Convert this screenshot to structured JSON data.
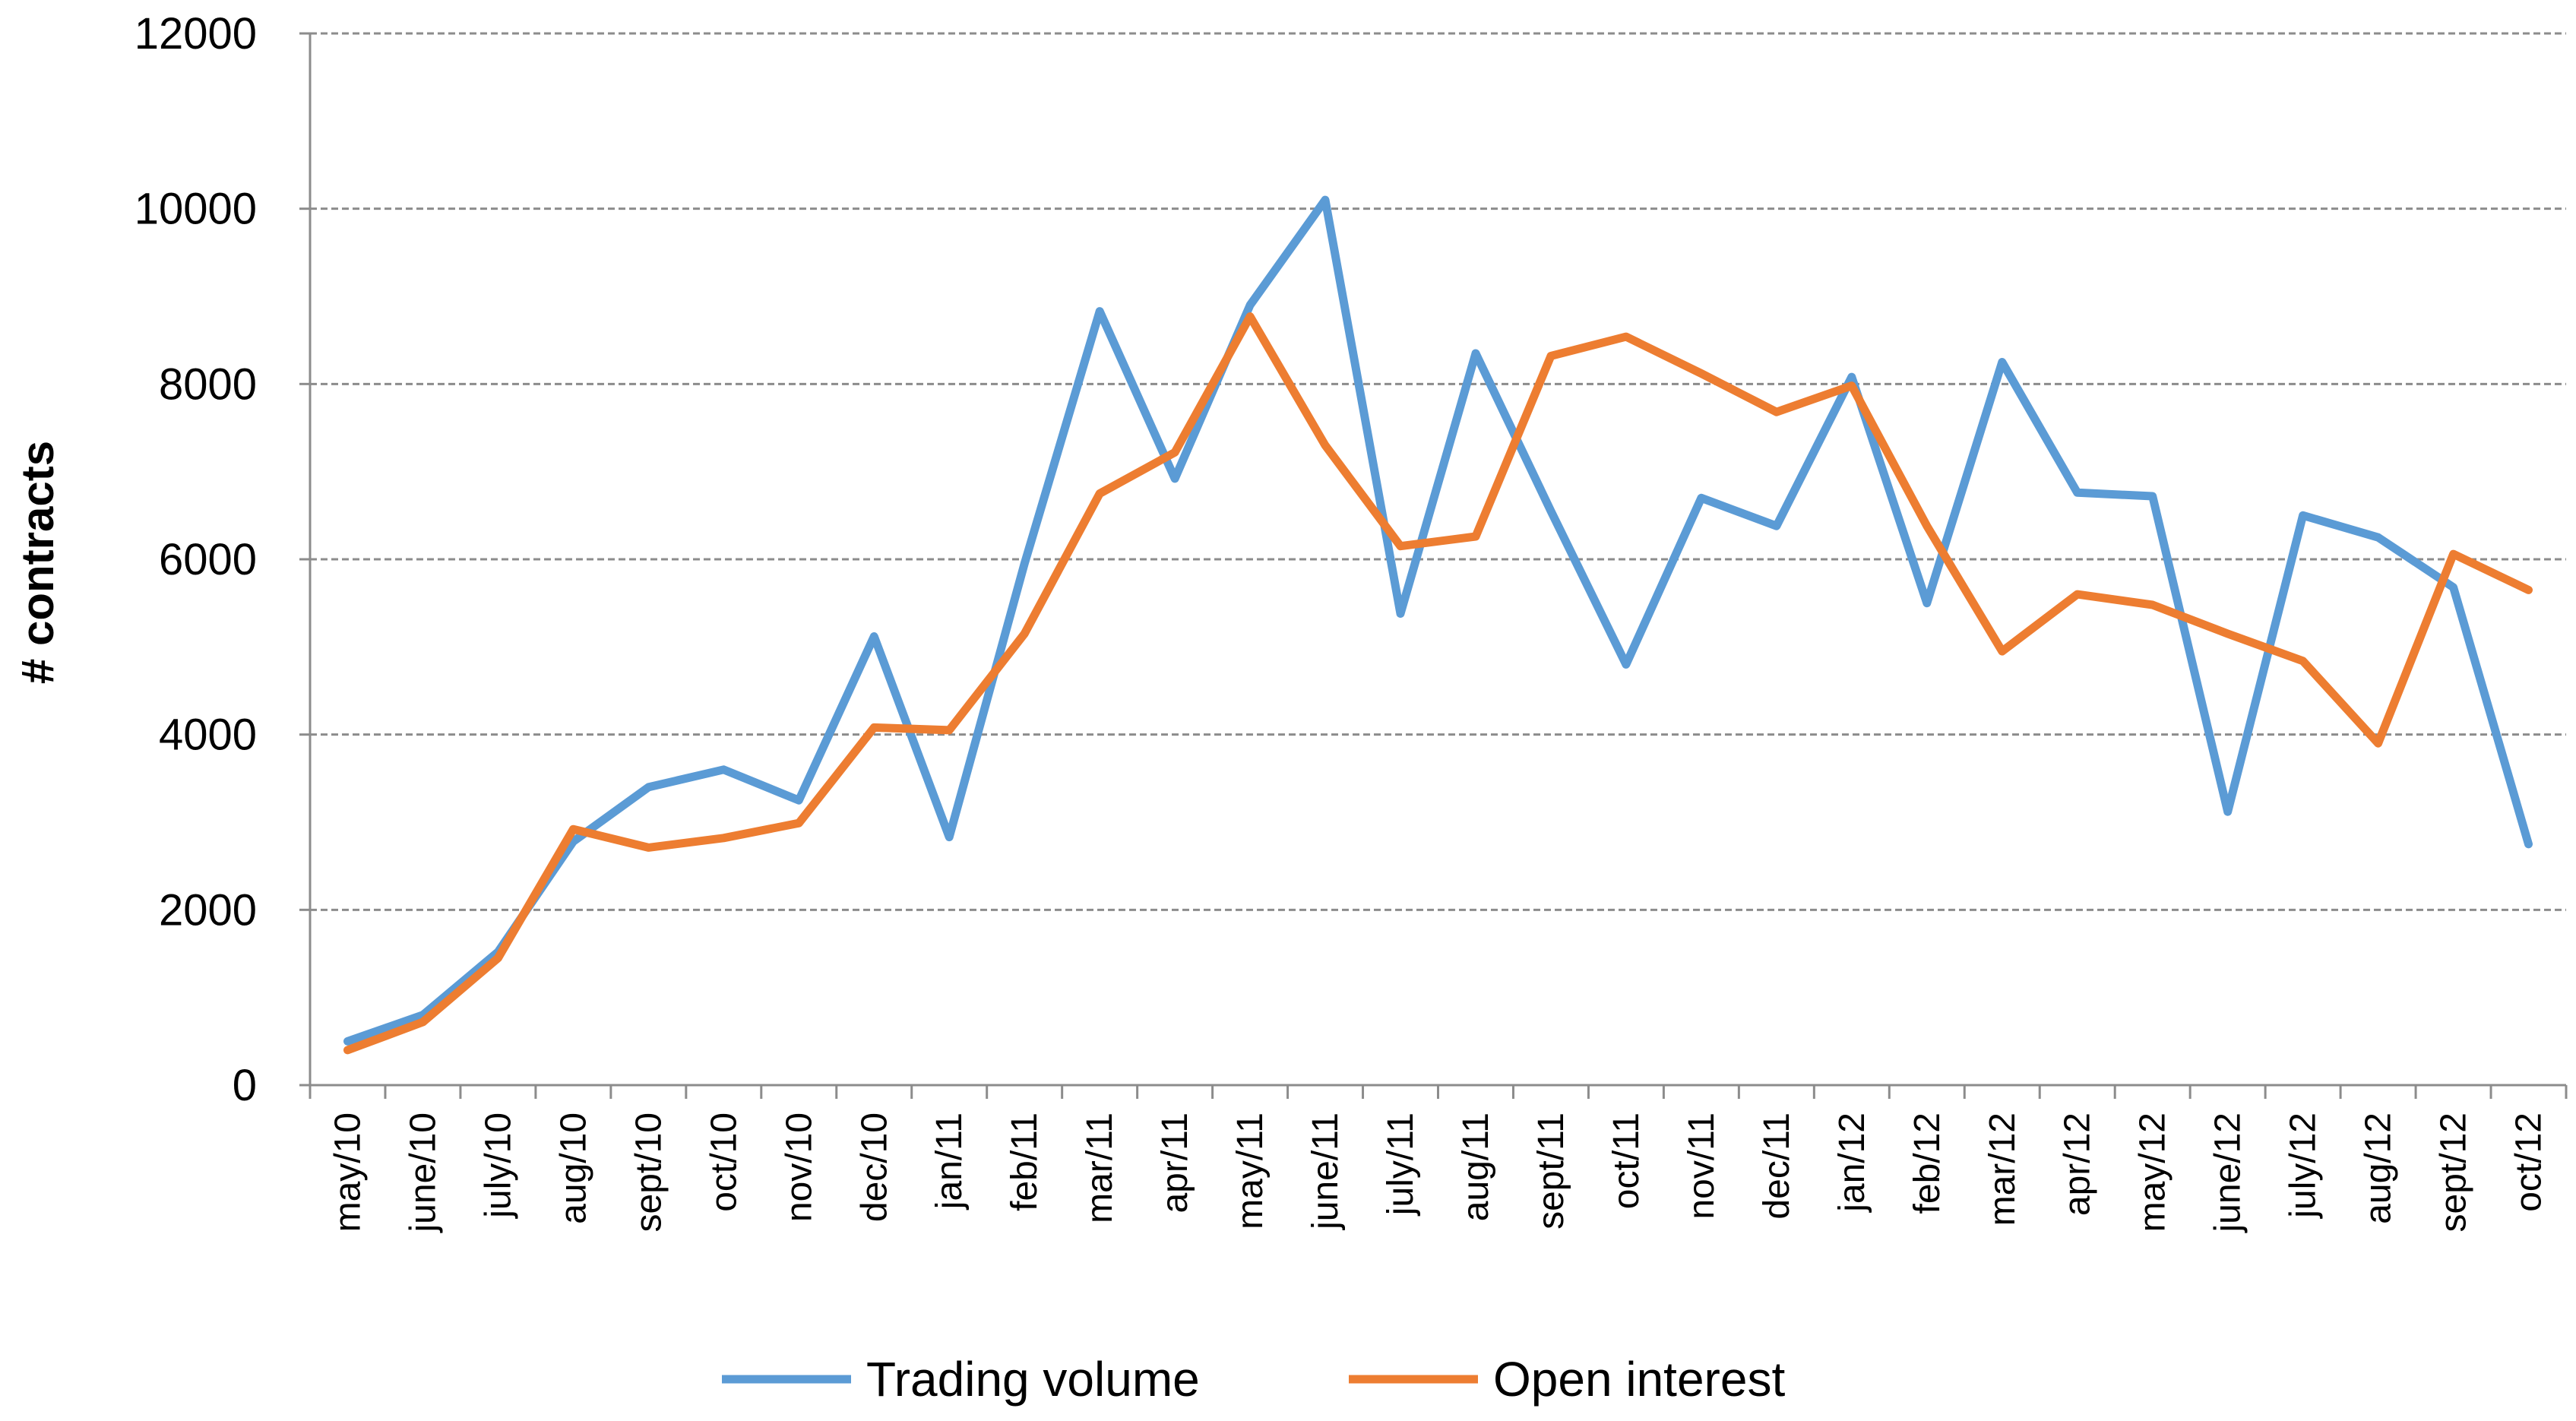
{
  "chart_data": {
    "type": "line",
    "title": "",
    "xlabel": "",
    "ylabel": "# contracts",
    "ylim": [
      0,
      12000
    ],
    "yticks": [
      0,
      2000,
      4000,
      6000,
      8000,
      10000,
      12000
    ],
    "grid": true,
    "legend_position": "bottom",
    "categories": [
      "may/10",
      "june/10",
      "july/10",
      "aug/10",
      "sept/10",
      "oct/10",
      "nov/10",
      "dec/10",
      "jan/11",
      "feb/11",
      "mar/11",
      "apr/11",
      "may/11",
      "june/11",
      "july/11",
      "aug/11",
      "sept/11",
      "oct/11",
      "nov/11",
      "dec/11",
      "jan/12",
      "feb/12",
      "mar/12",
      "apr/12",
      "may/12",
      "june/12",
      "july/12",
      "aug/12",
      "sept/12",
      "oct/12"
    ],
    "series": [
      {
        "name": "Trading volume",
        "color": "#5b9bd5",
        "values": [
          500,
          800,
          1520,
          2780,
          3400,
          3600,
          3250,
          5120,
          2830,
          5950,
          8830,
          6920,
          8900,
          10100,
          5380,
          8350,
          6550,
          4800,
          6700,
          6380,
          8080,
          5500,
          8250,
          6760,
          6720,
          3120,
          6500,
          6250,
          5680,
          2750
        ]
      },
      {
        "name": "Open interest",
        "color": "#ed7d31",
        "values": [
          400,
          720,
          1450,
          2920,
          2710,
          2820,
          2990,
          4080,
          4050,
          5150,
          6750,
          7220,
          8770,
          7300,
          6150,
          6260,
          8320,
          8540,
          8120,
          7680,
          7980,
          6380,
          4950,
          5600,
          5480,
          5150,
          4840,
          3900,
          6060,
          5650
        ]
      }
    ]
  }
}
